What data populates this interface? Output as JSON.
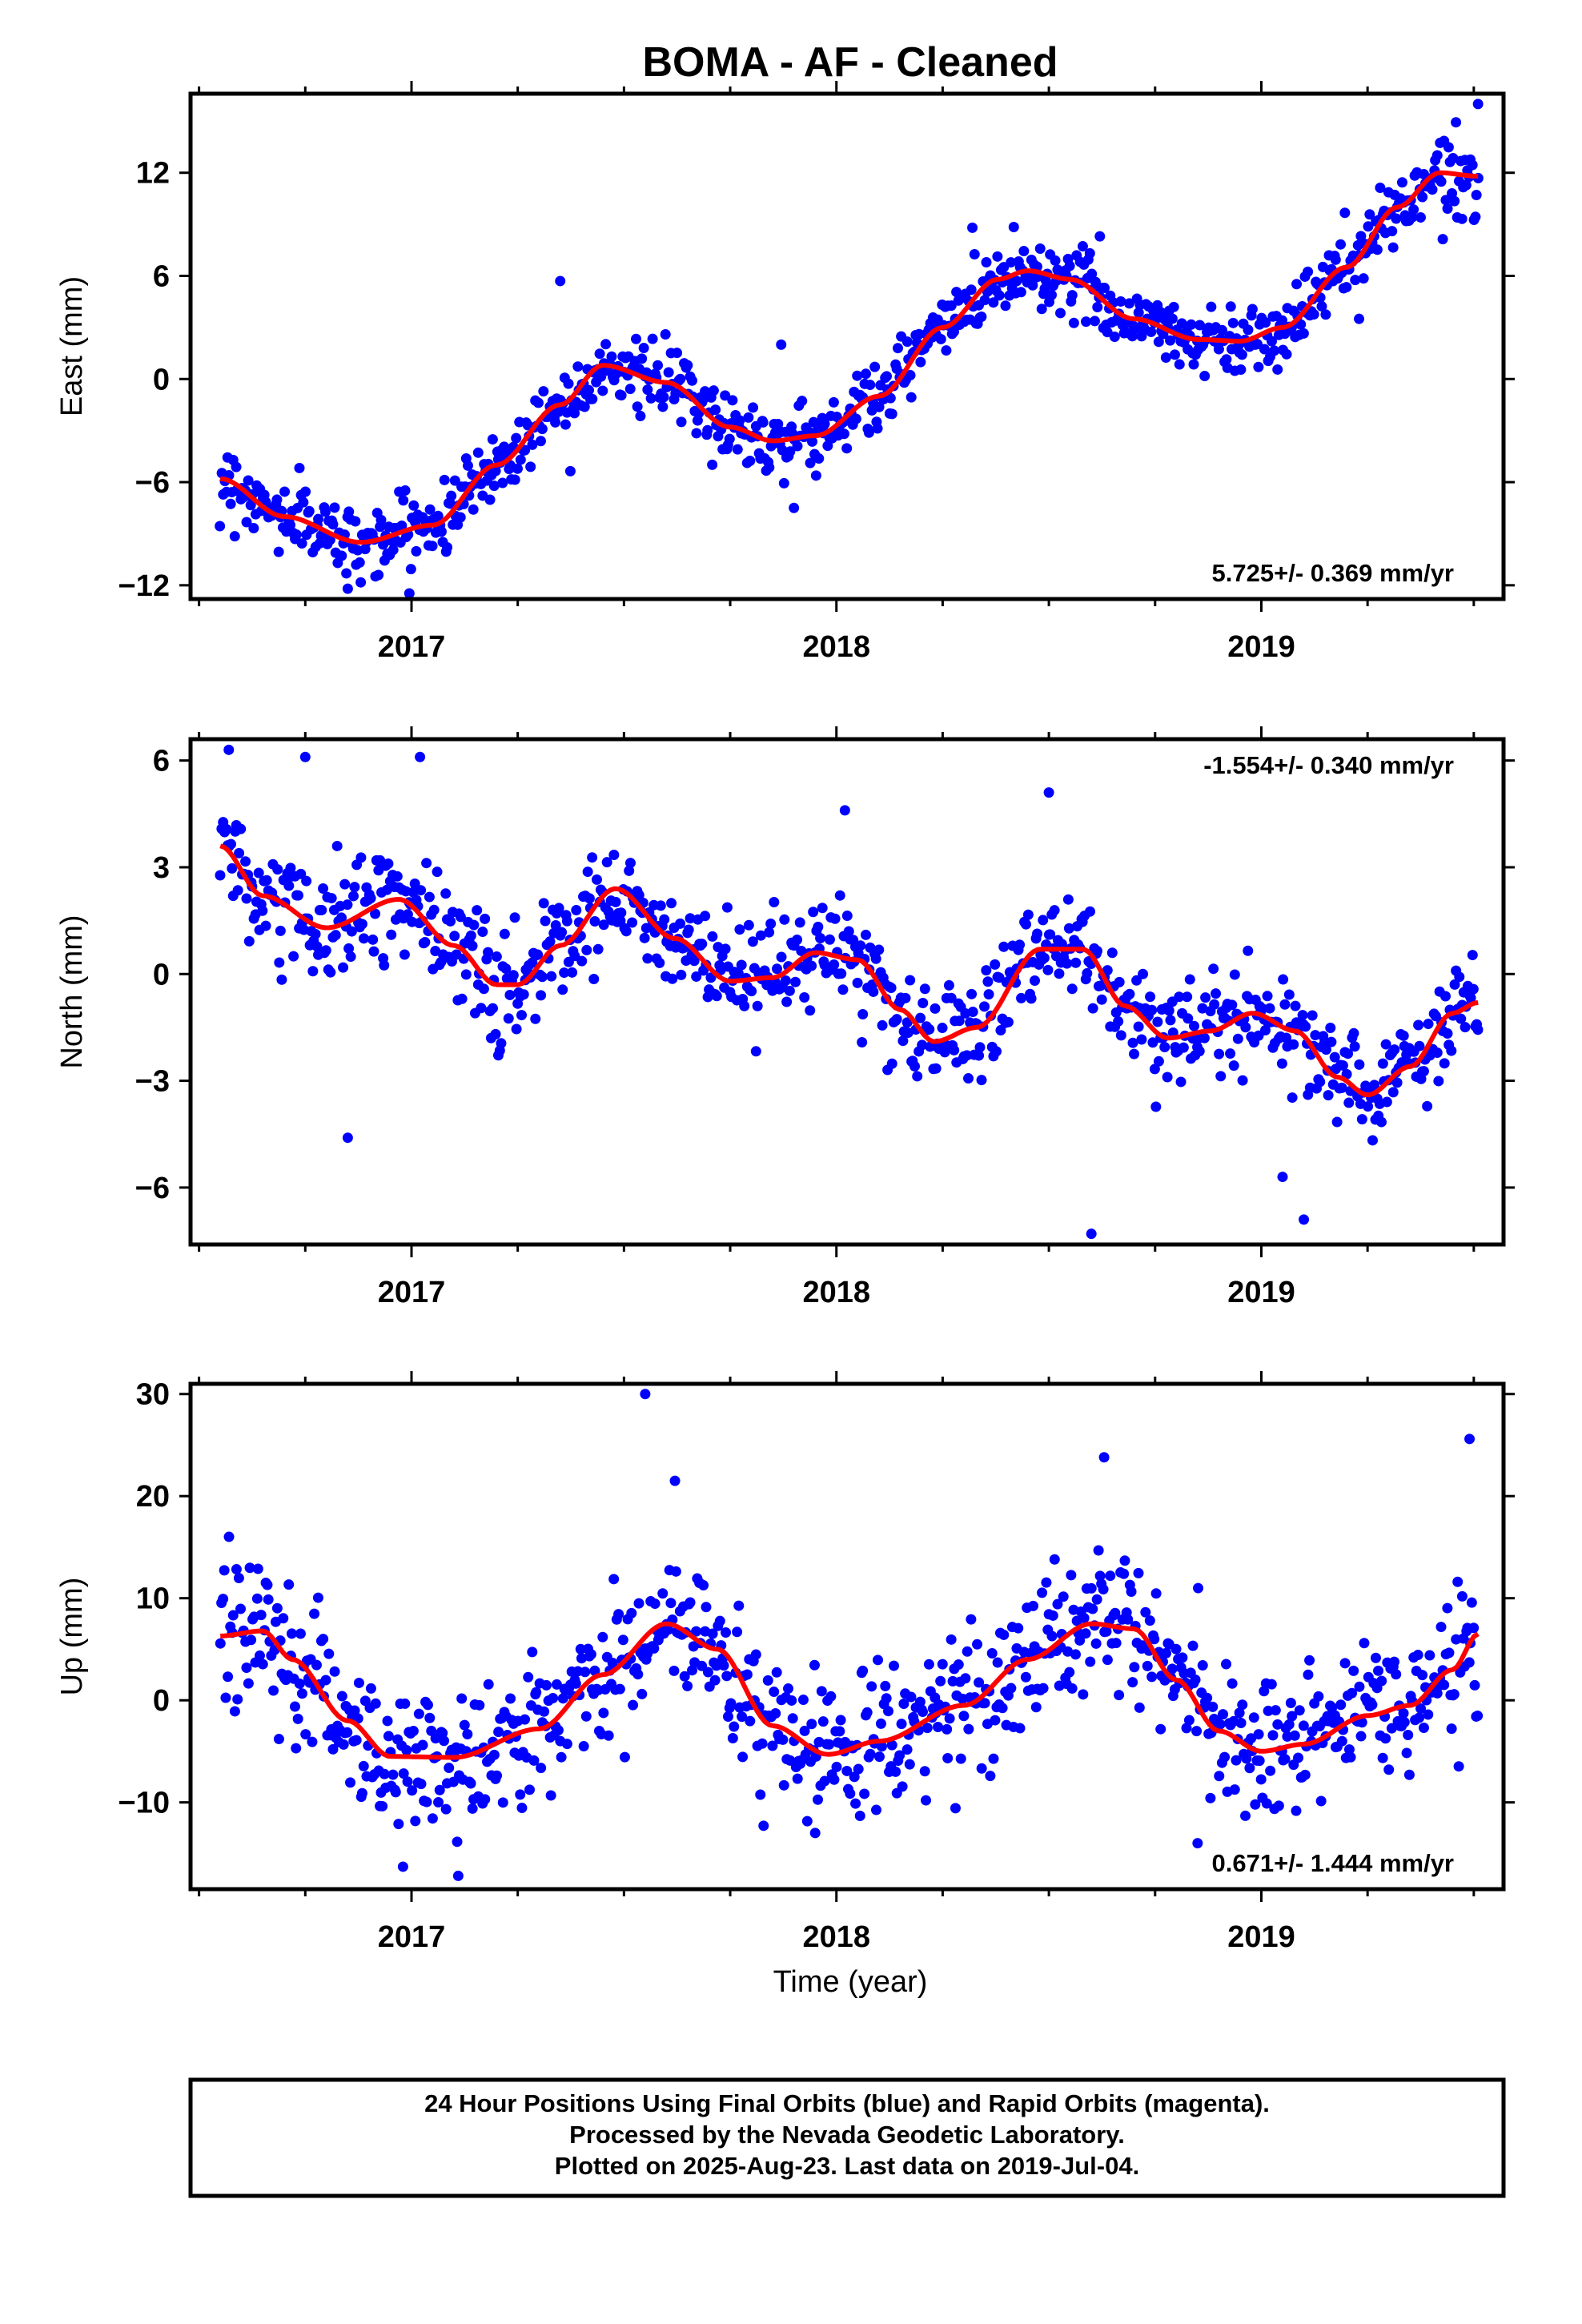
{
  "title": "BOMA  - AF - Cleaned",
  "xlabel": "Time (year)",
  "colors": {
    "data": "#0000ff",
    "model": "#ff0000",
    "frame": "#000000"
  },
  "footer": {
    "line1": "24 Hour Positions Using Final Orbits (blue) and Rapid Orbits (magenta).",
    "line2": "Processed by the Nevada Geodetic Laboratory.",
    "line3": "Plotted on 2025-Aug-23. Last data on 2019-Jul-04."
  },
  "chart_data": [
    {
      "type": "scatter",
      "ylabel": "East (mm)",
      "rate_label": "5.725+/- 0.369 mm/yr",
      "rate_placement": "bottom-right",
      "xlim": [
        2016.48,
        2019.57
      ],
      "ylim": [
        -12.8,
        16.6
      ],
      "yticks": [
        -12,
        -6,
        0,
        6,
        12
      ],
      "ytick_labels": [
        "−12",
        "−6",
        "0",
        "6",
        "12"
      ],
      "xticks": [
        2017,
        2018,
        2019
      ],
      "xtick_labels": [
        "2017",
        "2018",
        "2019"
      ],
      "data_start": 2016.55,
      "data_end": 2019.51,
      "scatter_sd": 1.0,
      "model": {
        "x": [
          2016.55,
          2016.7,
          2016.88,
          2017.05,
          2017.2,
          2017.35,
          2017.45,
          2017.6,
          2017.75,
          2017.85,
          2017.95,
          2018.1,
          2018.25,
          2018.38,
          2018.45,
          2018.55,
          2018.7,
          2018.85,
          2018.95,
          2019.05,
          2019.2,
          2019.32,
          2019.42,
          2019.51
        ],
        "y": [
          -5.8,
          -8.0,
          -9.5,
          -8.5,
          -5.0,
          -1.5,
          0.8,
          -0.2,
          -2.8,
          -3.6,
          -3.3,
          -1.0,
          3.0,
          5.8,
          6.3,
          5.8,
          3.5,
          2.3,
          2.2,
          3.0,
          6.5,
          10.0,
          12.0,
          11.8
        ]
      },
      "outliers": [
        [
          2017.35,
          5.7
        ],
        [
          2018.32,
          8.8
        ],
        [
          2019.51,
          16.0
        ],
        [
          2017.9,
          -7.5
        ],
        [
          2016.85,
          -12.2
        ],
        [
          2018.62,
          8.3
        ],
        [
          2019.23,
          3.5
        ],
        [
          2017.87,
          2.0
        ]
      ]
    },
    {
      "type": "scatter",
      "ylabel": "North (mm)",
      "rate_label": "-1.554+/- 0.340 mm/yr",
      "rate_placement": "top-right",
      "xlim": [
        2016.48,
        2019.57
      ],
      "ylim": [
        -7.6,
        6.6
      ],
      "yticks": [
        -6,
        -3,
        0,
        3,
        6
      ],
      "ytick_labels": [
        "−6",
        "−3",
        "0",
        "3",
        "6"
      ],
      "xticks": [
        2017,
        2018,
        2019
      ],
      "xtick_labels": [
        "2017",
        "2018",
        "2019"
      ],
      "data_start": 2016.55,
      "data_end": 2019.51,
      "scatter_sd": 0.75,
      "model": {
        "x": [
          2016.55,
          2016.65,
          2016.8,
          2016.97,
          2017.1,
          2017.2,
          2017.25,
          2017.35,
          2017.48,
          2017.62,
          2017.75,
          2017.85,
          2017.95,
          2018.05,
          2018.15,
          2018.23,
          2018.33,
          2018.48,
          2018.58,
          2018.68,
          2018.78,
          2018.88,
          2018.98,
          2019.08,
          2019.18,
          2019.25,
          2019.35,
          2019.45,
          2019.51
        ],
        "y": [
          3.6,
          2.2,
          1.3,
          2.1,
          0.8,
          -0.3,
          -0.3,
          0.8,
          2.4,
          1.0,
          -0.2,
          -0.1,
          0.6,
          0.4,
          -1.0,
          -1.9,
          -1.5,
          0.7,
          0.7,
          -0.9,
          -1.8,
          -1.6,
          -1.1,
          -1.6,
          -2.9,
          -3.4,
          -2.6,
          -1.1,
          -0.8
        ]
      },
      "outliers": [
        [
          2016.57,
          6.3
        ],
        [
          2016.85,
          -4.6
        ],
        [
          2017.02,
          6.1
        ],
        [
          2016.75,
          6.1
        ],
        [
          2018.02,
          4.6
        ],
        [
          2018.5,
          5.1
        ],
        [
          2018.6,
          -7.3
        ],
        [
          2019.1,
          -6.9
        ],
        [
          2019.05,
          -5.7
        ]
      ]
    },
    {
      "type": "scatter",
      "ylabel": "Up (mm)",
      "rate_label": "0.671+/- 1.444 mm/yr",
      "rate_placement": "bottom-right",
      "xlim": [
        2016.48,
        2019.57
      ],
      "ylim": [
        -18.5,
        31.0
      ],
      "yticks": [
        -10,
        0,
        10,
        20,
        30
      ],
      "ytick_labels": [
        "−10",
        "0",
        "10",
        "20",
        "30"
      ],
      "xticks": [
        2017,
        2018,
        2019
      ],
      "xtick_labels": [
        "2017",
        "2018",
        "2019"
      ],
      "data_start": 2016.55,
      "data_end": 2019.51,
      "scatter_sd": 3.4,
      "model": {
        "x": [
          2016.55,
          2016.65,
          2016.72,
          2016.85,
          2016.95,
          2017.1,
          2017.3,
          2017.45,
          2017.6,
          2017.72,
          2017.85,
          2017.98,
          2018.1,
          2018.3,
          2018.45,
          2018.6,
          2018.7,
          2018.8,
          2018.9,
          2019.0,
          2019.1,
          2019.25,
          2019.35,
          2019.45,
          2019.51
        ],
        "y": [
          6.3,
          6.8,
          4.0,
          -2.0,
          -5.5,
          -5.6,
          -2.8,
          2.5,
          7.5,
          5.0,
          -2.5,
          -5.3,
          -4.0,
          -0.5,
          4.0,
          7.5,
          7.0,
          2.0,
          -3.0,
          -5.0,
          -4.3,
          -1.5,
          -0.5,
          3.0,
          6.5
        ]
      },
      "outliers": [
        [
          2017.55,
          30.0
        ],
        [
          2018.63,
          23.8
        ],
        [
          2019.49,
          25.6
        ],
        [
          2017.62,
          21.5
        ],
        [
          2016.98,
          -16.3
        ],
        [
          2017.11,
          -17.2
        ],
        [
          2017.95,
          -13.0
        ],
        [
          2018.85,
          -14.0
        ]
      ]
    }
  ]
}
